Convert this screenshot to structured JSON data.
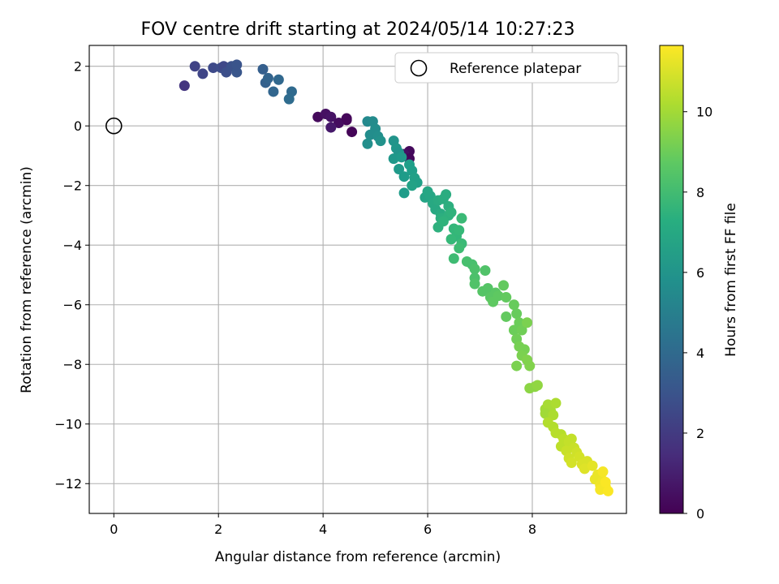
{
  "chart_data": {
    "type": "scatter",
    "title": "FOV centre drift starting at 2024/05/14 10:27:23",
    "xlabel": "Angular distance from reference (arcmin)",
    "ylabel": "Rotation from reference (arcmin)",
    "xlim": [
      -0.47,
      9.8
    ],
    "ylim": [
      -13.0,
      2.7
    ],
    "xticks": [
      0,
      2,
      4,
      6,
      8
    ],
    "yticks": [
      2,
      0,
      -2,
      -4,
      -6,
      -8,
      -10,
      -12
    ],
    "grid": true,
    "colormap": "viridis",
    "colorbar": {
      "label": "Hours from first FF file",
      "range": [
        0,
        11.65
      ],
      "ticks": [
        0,
        2,
        4,
        6,
        8,
        10
      ]
    },
    "legend": {
      "position": "top-right",
      "entries": [
        "Reference platepar"
      ]
    },
    "reference_point": {
      "x": 0,
      "y": 0
    },
    "points": [
      [
        4.45,
        0.2,
        0.1
      ],
      [
        4.55,
        -0.2,
        0.1
      ],
      [
        3.9,
        0.3,
        0.3
      ],
      [
        4.05,
        0.4,
        0.5
      ],
      [
        4.15,
        0.3,
        0.6
      ],
      [
        4.3,
        0.1,
        0.4
      ],
      [
        4.45,
        0.25,
        0.2
      ],
      [
        4.15,
        -0.05,
        0.8
      ],
      [
        5.65,
        -0.85,
        0.3
      ],
      [
        5.55,
        -0.95,
        0.5
      ],
      [
        5.65,
        -1.1,
        0.2
      ],
      [
        1.35,
        1.35,
        1.8
      ],
      [
        1.55,
        2.0,
        2.3
      ],
      [
        1.7,
        1.75,
        2.4
      ],
      [
        1.9,
        1.95,
        2.6
      ],
      [
        2.05,
        1.95,
        2.7
      ],
      [
        2.1,
        2.0,
        2.5
      ],
      [
        2.15,
        1.8,
        2.8
      ],
      [
        2.25,
        2.0,
        2.9
      ],
      [
        2.35,
        1.8,
        3.1
      ],
      [
        2.35,
        2.05,
        3.0
      ],
      [
        2.85,
        1.9,
        3.5
      ],
      [
        2.9,
        1.45,
        3.6
      ],
      [
        2.95,
        1.6,
        3.7
      ],
      [
        3.05,
        1.15,
        3.8
      ],
      [
        3.15,
        1.55,
        3.9
      ],
      [
        3.4,
        1.15,
        4.0
      ],
      [
        3.35,
        0.9,
        4.1
      ],
      [
        4.85,
        0.15,
        5.5
      ],
      [
        4.95,
        0.15,
        5.6
      ],
      [
        5.0,
        -0.1,
        5.7
      ],
      [
        4.9,
        -0.3,
        5.7
      ],
      [
        5.05,
        -0.35,
        5.8
      ],
      [
        4.85,
        -0.6,
        5.8
      ],
      [
        5.1,
        -0.5,
        5.9
      ],
      [
        5.35,
        -0.5,
        6.0
      ],
      [
        5.4,
        -0.75,
        6.1
      ],
      [
        5.45,
        -0.9,
        6.0
      ],
      [
        5.35,
        -1.1,
        6.2
      ],
      [
        5.5,
        -1.05,
        6.3
      ],
      [
        5.45,
        -1.45,
        6.3
      ],
      [
        5.55,
        -1.7,
        6.4
      ],
      [
        5.55,
        -2.25,
        6.4
      ],
      [
        5.65,
        -1.3,
        6.5
      ],
      [
        5.7,
        -1.5,
        6.5
      ],
      [
        5.75,
        -1.75,
        6.6
      ],
      [
        5.8,
        -1.9,
        6.6
      ],
      [
        5.7,
        -2.0,
        6.7
      ],
      [
        5.95,
        -2.4,
        6.8
      ],
      [
        6.0,
        -2.2,
        6.9
      ],
      [
        6.05,
        -2.35,
        6.9
      ],
      [
        6.1,
        -2.6,
        7.0
      ],
      [
        6.15,
        -2.8,
        7.0
      ],
      [
        6.2,
        -2.5,
        7.1
      ],
      [
        6.25,
        -2.95,
        7.1
      ],
      [
        6.3,
        -2.45,
        7.2
      ],
      [
        6.35,
        -2.3,
        7.2
      ],
      [
        6.25,
        -3.1,
        7.3
      ],
      [
        6.4,
        -2.7,
        7.3
      ],
      [
        6.4,
        -3.0,
        7.4
      ],
      [
        6.2,
        -3.4,
        7.4
      ],
      [
        6.3,
        -3.2,
        7.5
      ],
      [
        6.45,
        -2.9,
        7.5
      ],
      [
        6.5,
        -3.45,
        7.7
      ],
      [
        6.55,
        -3.7,
        7.7
      ],
      [
        6.6,
        -3.5,
        7.8
      ],
      [
        6.45,
        -3.8,
        7.8
      ],
      [
        6.65,
        -3.1,
        7.9
      ],
      [
        6.65,
        -3.95,
        7.9
      ],
      [
        6.6,
        -4.1,
        8.0
      ],
      [
        6.5,
        -4.45,
        8.0
      ],
      [
        6.75,
        -4.55,
        8.2
      ],
      [
        6.85,
        -4.65,
        8.2
      ],
      [
        6.9,
        -4.8,
        8.3
      ],
      [
        6.9,
        -5.1,
        8.3
      ],
      [
        6.9,
        -5.3,
        8.4
      ],
      [
        7.1,
        -4.85,
        8.4
      ],
      [
        7.05,
        -5.55,
        8.5
      ],
      [
        7.15,
        -5.45,
        8.5
      ],
      [
        7.2,
        -5.75,
        8.6
      ],
      [
        7.3,
        -5.6,
        8.6
      ],
      [
        7.25,
        -5.9,
        8.7
      ],
      [
        7.35,
        -5.7,
        8.7
      ],
      [
        7.45,
        -5.35,
        8.8
      ],
      [
        7.5,
        -5.75,
        8.8
      ],
      [
        7.5,
        -6.4,
        8.8
      ],
      [
        7.65,
        -6.0,
        8.9
      ],
      [
        7.7,
        -6.3,
        8.9
      ],
      [
        7.75,
        -6.6,
        9.0
      ],
      [
        7.65,
        -6.85,
        9.0
      ],
      [
        7.8,
        -6.85,
        9.1
      ],
      [
        7.7,
        -7.15,
        9.1
      ],
      [
        7.75,
        -7.4,
        9.2
      ],
      [
        7.85,
        -7.5,
        9.2
      ],
      [
        7.9,
        -6.6,
        9.3
      ],
      [
        7.8,
        -7.7,
        9.3
      ],
      [
        7.9,
        -7.85,
        9.4
      ],
      [
        7.95,
        -8.05,
        9.4
      ],
      [
        7.7,
        -8.05,
        9.3
      ],
      [
        7.95,
        -8.8,
        9.6
      ],
      [
        8.05,
        -8.75,
        9.6
      ],
      [
        8.1,
        -8.7,
        9.7
      ],
      [
        8.25,
        -9.5,
        10.0
      ],
      [
        8.3,
        -9.35,
        10.1
      ],
      [
        8.35,
        -9.55,
        10.1
      ],
      [
        8.25,
        -9.65,
        10.0
      ],
      [
        8.45,
        -9.3,
        10.2
      ],
      [
        8.4,
        -9.7,
        10.2
      ],
      [
        8.3,
        -9.95,
        10.3
      ],
      [
        8.4,
        -10.1,
        10.3
      ],
      [
        8.45,
        -10.3,
        10.4
      ],
      [
        8.55,
        -10.35,
        10.4
      ],
      [
        8.6,
        -10.5,
        10.5
      ],
      [
        8.55,
        -10.75,
        10.5
      ],
      [
        8.7,
        -10.6,
        10.6
      ],
      [
        8.75,
        -10.5,
        10.6
      ],
      [
        8.65,
        -10.9,
        10.7
      ],
      [
        8.8,
        -10.8,
        10.7
      ],
      [
        8.7,
        -11.15,
        10.8
      ],
      [
        8.85,
        -10.95,
        10.8
      ],
      [
        8.75,
        -11.3,
        10.9
      ],
      [
        8.9,
        -11.1,
        10.9
      ],
      [
        8.95,
        -11.35,
        11.0
      ],
      [
        9.05,
        -11.25,
        11.0
      ],
      [
        9.0,
        -11.5,
        11.1
      ],
      [
        9.15,
        -11.4,
        11.2
      ],
      [
        9.2,
        -11.85,
        11.3
      ],
      [
        9.25,
        -11.7,
        11.3
      ],
      [
        9.3,
        -12.05,
        11.4
      ],
      [
        9.35,
        -11.9,
        11.4
      ],
      [
        9.3,
        -12.2,
        11.5
      ],
      [
        9.4,
        -12.1,
        11.5
      ],
      [
        9.35,
        -11.6,
        11.5
      ],
      [
        9.45,
        -12.25,
        11.6
      ],
      [
        9.4,
        -11.95,
        11.6
      ]
    ]
  }
}
